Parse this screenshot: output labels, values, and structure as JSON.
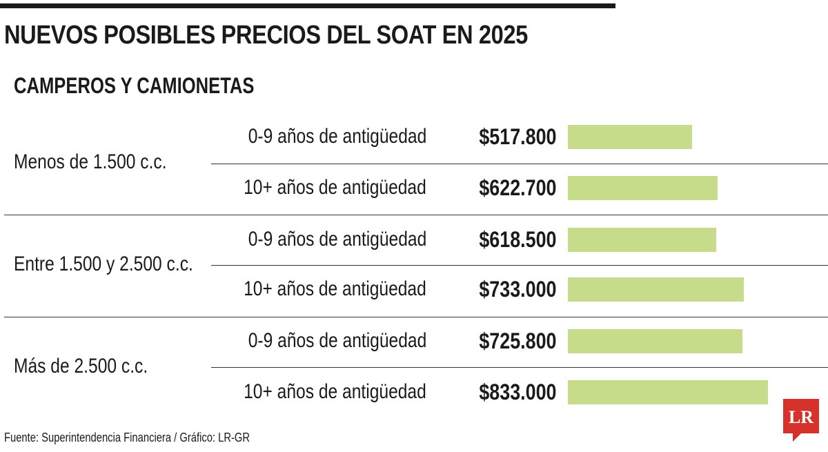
{
  "header": {
    "title": "NUEVOS POSIBLES PRECIOS DEL SOAT EN 2025",
    "subtitle": "CAMPEROS Y CAMIONETAS"
  },
  "chart_data": {
    "type": "bar",
    "orientation": "horizontal",
    "title": "NUEVOS POSIBLES PRECIOS DEL SOAT EN 2025",
    "subtitle": "CAMPEROS Y CAMIONETAS",
    "groups": [
      {
        "label": "Menos de 1.500 c.c.",
        "rows": [
          {
            "category": "0-9 años de antigüedad",
            "value": 517800,
            "value_label": "$517.800"
          },
          {
            "category": "10+ años de antigüedad",
            "value": 622700,
            "value_label": "$622.700"
          }
        ]
      },
      {
        "label": "Entre 1.500 y 2.500 c.c.",
        "rows": [
          {
            "category": "0-9 años de antigüedad",
            "value": 618500,
            "value_label": "$618.500"
          },
          {
            "category": "10+ años de antigüedad",
            "value": 733000,
            "value_label": "$733.000"
          }
        ]
      },
      {
        "label": "Más de 2.500 c.c.",
        "rows": [
          {
            "category": "0-9 años de antigüedad",
            "value": 725800,
            "value_label": "$725.800"
          },
          {
            "category": "10+ años de antigüedad",
            "value": 833000,
            "value_label": "$833.000"
          }
        ]
      }
    ],
    "bar_color": "#c7dc8b",
    "grid": false
  },
  "footer": {
    "source": "Fuente: Superintendencia Financiera / Gráfico: LR-GR"
  },
  "logo": {
    "text": "LR",
    "color": "#d6312b"
  }
}
